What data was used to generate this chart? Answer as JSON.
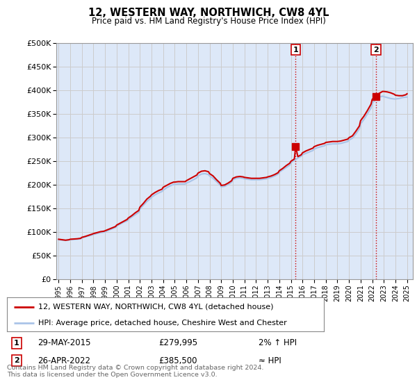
{
  "title": "12, WESTERN WAY, NORTHWICH, CW8 4YL",
  "subtitle": "Price paid vs. HM Land Registry's House Price Index (HPI)",
  "ylabel_ticks": [
    "£0",
    "£50K",
    "£100K",
    "£150K",
    "£200K",
    "£250K",
    "£300K",
    "£350K",
    "£400K",
    "£450K",
    "£500K"
  ],
  "ytick_values": [
    0,
    50000,
    100000,
    150000,
    200000,
    250000,
    300000,
    350000,
    400000,
    450000,
    500000
  ],
  "ylim": [
    0,
    500000
  ],
  "xlim_start": 1994.8,
  "xlim_end": 2025.5,
  "xtick_years": [
    1995,
    1996,
    1997,
    1998,
    1999,
    2000,
    2001,
    2002,
    2003,
    2004,
    2005,
    2006,
    2007,
    2008,
    2009,
    2010,
    2011,
    2012,
    2013,
    2014,
    2015,
    2016,
    2017,
    2018,
    2019,
    2020,
    2021,
    2022,
    2023,
    2024,
    2025
  ],
  "grid_color": "#cccccc",
  "bg_color": "#ffffff",
  "plot_bg_color": "#dde8f8",
  "hpi_line_color": "#aac4e8",
  "price_line_color": "#cc0000",
  "sale1_x": 2015.41,
  "sale1_y": 279995,
  "sale1_label": "1",
  "sale2_x": 2022.32,
  "sale2_y": 385500,
  "sale2_label": "2",
  "vline_color": "#cc0000",
  "vline_style": ":",
  "annotation_box_color": "#cc0000",
  "legend_label_red": "12, WESTERN WAY, NORTHWICH, CW8 4YL (detached house)",
  "legend_label_blue": "HPI: Average price, detached house, Cheshire West and Chester",
  "annot1_date": "29-MAY-2015",
  "annot1_price": "£279,995",
  "annot1_hpi": "2% ↑ HPI",
  "annot2_date": "26-APR-2022",
  "annot2_price": "£385,500",
  "annot2_hpi": "≈ HPI",
  "footer": "Contains HM Land Registry data © Crown copyright and database right 2024.\nThis data is licensed under the Open Government Licence v3.0.",
  "hpi_data": [
    [
      1995.0,
      83000
    ],
    [
      1995.3,
      82000
    ],
    [
      1995.6,
      81500
    ],
    [
      1995.9,
      82500
    ],
    [
      1996.0,
      83000
    ],
    [
      1996.3,
      83500
    ],
    [
      1996.6,
      84000
    ],
    [
      1996.9,
      85000
    ],
    [
      1997.0,
      87000
    ],
    [
      1997.3,
      89000
    ],
    [
      1997.6,
      91000
    ],
    [
      1997.9,
      93000
    ],
    [
      1998.0,
      94000
    ],
    [
      1998.3,
      96000
    ],
    [
      1998.6,
      98000
    ],
    [
      1998.9,
      99000
    ],
    [
      1999.0,
      100000
    ],
    [
      1999.3,
      103000
    ],
    [
      1999.6,
      106000
    ],
    [
      1999.9,
      109000
    ],
    [
      2000.0,
      112000
    ],
    [
      2000.3,
      116000
    ],
    [
      2000.6,
      120000
    ],
    [
      2000.9,
      123000
    ],
    [
      2001.0,
      126000
    ],
    [
      2001.3,
      131000
    ],
    [
      2001.6,
      136000
    ],
    [
      2001.9,
      141000
    ],
    [
      2002.0,
      148000
    ],
    [
      2002.3,
      156000
    ],
    [
      2002.6,
      164000
    ],
    [
      2002.9,
      170000
    ],
    [
      2003.0,
      173000
    ],
    [
      2003.3,
      178000
    ],
    [
      2003.6,
      182000
    ],
    [
      2003.9,
      185000
    ],
    [
      2004.0,
      188000
    ],
    [
      2004.3,
      193000
    ],
    [
      2004.6,
      197000
    ],
    [
      2004.9,
      200000
    ],
    [
      2005.0,
      200000
    ],
    [
      2005.3,
      201000
    ],
    [
      2005.6,
      201000
    ],
    [
      2005.9,
      201000
    ],
    [
      2006.0,
      203000
    ],
    [
      2006.3,
      206000
    ],
    [
      2006.6,
      210000
    ],
    [
      2006.9,
      214000
    ],
    [
      2007.0,
      218000
    ],
    [
      2007.3,
      222000
    ],
    [
      2007.6,
      223000
    ],
    [
      2007.9,
      221000
    ],
    [
      2008.0,
      218000
    ],
    [
      2008.3,
      213000
    ],
    [
      2008.6,
      206000
    ],
    [
      2008.9,
      199000
    ],
    [
      2009.0,
      195000
    ],
    [
      2009.3,
      196000
    ],
    [
      2009.6,
      200000
    ],
    [
      2009.9,
      205000
    ],
    [
      2010.0,
      210000
    ],
    [
      2010.3,
      213000
    ],
    [
      2010.6,
      214000
    ],
    [
      2010.9,
      213000
    ],
    [
      2011.0,
      212000
    ],
    [
      2011.3,
      211000
    ],
    [
      2011.6,
      210000
    ],
    [
      2011.9,
      210000
    ],
    [
      2012.0,
      210000
    ],
    [
      2012.3,
      210000
    ],
    [
      2012.6,
      211000
    ],
    [
      2012.9,
      212000
    ],
    [
      2013.0,
      213000
    ],
    [
      2013.3,
      215000
    ],
    [
      2013.6,
      218000
    ],
    [
      2013.9,
      222000
    ],
    [
      2014.0,
      226000
    ],
    [
      2014.3,
      231000
    ],
    [
      2014.6,
      236000
    ],
    [
      2014.9,
      241000
    ],
    [
      2015.0,
      246000
    ],
    [
      2015.3,
      251000
    ],
    [
      2015.6,
      256000
    ],
    [
      2015.9,
      260000
    ],
    [
      2016.0,
      263000
    ],
    [
      2016.3,
      266000
    ],
    [
      2016.6,
      269000
    ],
    [
      2016.9,
      272000
    ],
    [
      2017.0,
      275000
    ],
    [
      2017.3,
      278000
    ],
    [
      2017.6,
      280000
    ],
    [
      2017.9,
      282000
    ],
    [
      2018.0,
      284000
    ],
    [
      2018.3,
      285000
    ],
    [
      2018.6,
      286000
    ],
    [
      2018.9,
      286000
    ],
    [
      2019.0,
      286000
    ],
    [
      2019.3,
      287000
    ],
    [
      2019.6,
      289000
    ],
    [
      2019.9,
      291000
    ],
    [
      2020.0,
      294000
    ],
    [
      2020.3,
      298000
    ],
    [
      2020.6,
      307000
    ],
    [
      2020.9,
      318000
    ],
    [
      2021.0,
      328000
    ],
    [
      2021.3,
      338000
    ],
    [
      2021.6,
      350000
    ],
    [
      2021.9,
      362000
    ],
    [
      2022.0,
      372000
    ],
    [
      2022.3,
      380000
    ],
    [
      2022.6,
      385000
    ],
    [
      2022.9,
      387000
    ],
    [
      2023.0,
      386000
    ],
    [
      2023.3,
      384000
    ],
    [
      2023.6,
      382000
    ],
    [
      2023.9,
      381000
    ],
    [
      2024.0,
      381000
    ],
    [
      2024.3,
      382000
    ],
    [
      2024.6,
      384000
    ],
    [
      2024.9,
      385000
    ],
    [
      2025.0,
      385000
    ]
  ],
  "price_data": [
    [
      1995.0,
      84000
    ],
    [
      1995.3,
      83000
    ],
    [
      1995.6,
      82000
    ],
    [
      1995.9,
      83000
    ],
    [
      1996.0,
      84000
    ],
    [
      1996.3,
      84500
    ],
    [
      1996.6,
      85000
    ],
    [
      1996.9,
      86000
    ],
    [
      1997.0,
      88000
    ],
    [
      1997.3,
      90000
    ],
    [
      1997.6,
      92500
    ],
    [
      1997.9,
      95000
    ],
    [
      1998.0,
      96000
    ],
    [
      1998.3,
      98000
    ],
    [
      1998.6,
      100000
    ],
    [
      1998.9,
      101000
    ],
    [
      1999.0,
      102000
    ],
    [
      1999.3,
      105000
    ],
    [
      1999.6,
      108000
    ],
    [
      1999.9,
      111000
    ],
    [
      2000.0,
      114000
    ],
    [
      2000.3,
      118000
    ],
    [
      2000.6,
      122000
    ],
    [
      2000.9,
      126000
    ],
    [
      2001.0,
      129000
    ],
    [
      2001.3,
      134000
    ],
    [
      2001.6,
      140000
    ],
    [
      2001.9,
      145000
    ],
    [
      2002.0,
      152000
    ],
    [
      2002.3,
      160000
    ],
    [
      2002.6,
      169000
    ],
    [
      2002.9,
      175000
    ],
    [
      2003.0,
      178000
    ],
    [
      2003.3,
      183000
    ],
    [
      2003.6,
      187000
    ],
    [
      2003.9,
      190000
    ],
    [
      2004.0,
      194000
    ],
    [
      2004.3,
      198000
    ],
    [
      2004.6,
      202000
    ],
    [
      2004.9,
      205000
    ],
    [
      2005.0,
      205000
    ],
    [
      2005.3,
      206000
    ],
    [
      2005.6,
      206000
    ],
    [
      2005.9,
      206000
    ],
    [
      2006.0,
      208000
    ],
    [
      2006.3,
      212000
    ],
    [
      2006.6,
      216000
    ],
    [
      2006.9,
      220000
    ],
    [
      2007.0,
      224000
    ],
    [
      2007.3,
      228000
    ],
    [
      2007.6,
      229000
    ],
    [
      2007.9,
      227000
    ],
    [
      2008.0,
      223000
    ],
    [
      2008.3,
      218000
    ],
    [
      2008.6,
      210000
    ],
    [
      2008.9,
      203000
    ],
    [
      2009.0,
      198000
    ],
    [
      2009.3,
      199000
    ],
    [
      2009.6,
      203000
    ],
    [
      2009.9,
      208000
    ],
    [
      2010.0,
      213000
    ],
    [
      2010.3,
      216000
    ],
    [
      2010.6,
      217000
    ],
    [
      2010.9,
      216000
    ],
    [
      2011.0,
      215000
    ],
    [
      2011.3,
      214000
    ],
    [
      2011.6,
      213000
    ],
    [
      2011.9,
      213000
    ],
    [
      2012.0,
      213000
    ],
    [
      2012.3,
      213000
    ],
    [
      2012.6,
      214000
    ],
    [
      2012.9,
      215000
    ],
    [
      2013.0,
      216000
    ],
    [
      2013.3,
      218000
    ],
    [
      2013.6,
      221000
    ],
    [
      2013.9,
      225000
    ],
    [
      2014.0,
      229000
    ],
    [
      2014.3,
      234000
    ],
    [
      2014.6,
      240000
    ],
    [
      2014.9,
      245000
    ],
    [
      2015.0,
      249000
    ],
    [
      2015.3,
      254000
    ],
    [
      2015.41,
      279995
    ],
    [
      2015.6,
      259000
    ],
    [
      2015.9,
      263000
    ],
    [
      2016.0,
      267000
    ],
    [
      2016.3,
      271000
    ],
    [
      2016.6,
      274000
    ],
    [
      2016.9,
      277000
    ],
    [
      2017.0,
      280000
    ],
    [
      2017.3,
      283000
    ],
    [
      2017.6,
      285000
    ],
    [
      2017.9,
      287000
    ],
    [
      2018.0,
      289000
    ],
    [
      2018.3,
      290000
    ],
    [
      2018.6,
      291000
    ],
    [
      2018.9,
      291000
    ],
    [
      2019.0,
      291000
    ],
    [
      2019.3,
      292000
    ],
    [
      2019.6,
      294000
    ],
    [
      2019.9,
      296000
    ],
    [
      2020.0,
      299000
    ],
    [
      2020.3,
      303000
    ],
    [
      2020.6,
      313000
    ],
    [
      2020.9,
      324000
    ],
    [
      2021.0,
      335000
    ],
    [
      2021.3,
      345000
    ],
    [
      2021.6,
      357000
    ],
    [
      2021.9,
      370000
    ],
    [
      2022.0,
      380000
    ],
    [
      2022.3,
      388000
    ],
    [
      2022.32,
      385500
    ],
    [
      2022.6,
      393000
    ],
    [
      2022.9,
      397000
    ],
    [
      2023.0,
      397000
    ],
    [
      2023.3,
      396000
    ],
    [
      2023.6,
      394000
    ],
    [
      2023.9,
      391000
    ],
    [
      2024.0,
      389000
    ],
    [
      2024.3,
      388000
    ],
    [
      2024.6,
      388000
    ],
    [
      2024.9,
      390000
    ],
    [
      2025.0,
      392000
    ]
  ]
}
